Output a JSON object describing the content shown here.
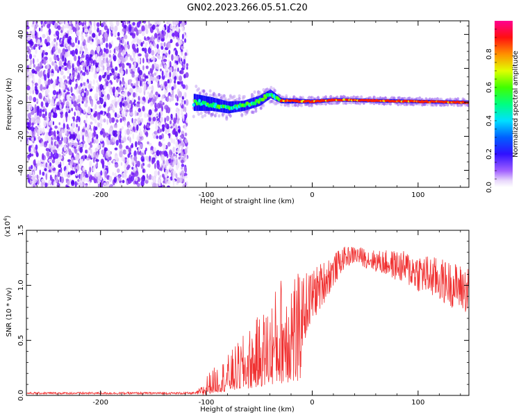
{
  "title": "GN02.2023.266.05.51.C20",
  "chart_data": [
    {
      "type": "heatmap",
      "name": "spectrogram",
      "xlabel": "Height of straight line (km)",
      "ylabel": "Frequency (Hz)",
      "xlim": [
        -270,
        148
      ],
      "ylim": [
        -50,
        48
      ],
      "xticks": [
        "-200",
        "-100",
        "0",
        "100"
      ],
      "xtick_values": [
        -200,
        -100,
        0,
        100
      ],
      "yticks": [
        "-40",
        "-20",
        "0",
        "20",
        "40"
      ],
      "ytick_values": [
        -40,
        -20,
        0,
        20,
        40
      ],
      "noise_region_x": [
        -270,
        -118
      ],
      "gap_region_x": [
        -118,
        -112
      ],
      "signal_band": [
        {
          "x": -112,
          "freq": 0,
          "spread": 5
        },
        {
          "x": -95,
          "freq": -1,
          "spread": 4
        },
        {
          "x": -80,
          "freq": -3,
          "spread": 3.5
        },
        {
          "x": -65,
          "freq": -2,
          "spread": 3
        },
        {
          "x": -50,
          "freq": 1,
          "spread": 3
        },
        {
          "x": -40,
          "freq": 5,
          "spread": 2.5
        },
        {
          "x": -30,
          "freq": 1,
          "spread": 1.5
        },
        {
          "x": 0,
          "freq": 0.5,
          "spread": 1.2
        },
        {
          "x": 20,
          "freq": 1.5,
          "spread": 1
        },
        {
          "x": 60,
          "freq": 1,
          "spread": 1
        },
        {
          "x": 100,
          "freq": 0.5,
          "spread": 1
        },
        {
          "x": 148,
          "freq": 0,
          "spread": 1
        }
      ],
      "colorbar": {
        "label": "Normalized spectral amplitude",
        "range": [
          0,
          1
        ],
        "ticks": [
          "0.0",
          "0.2",
          "0.4",
          "0.6",
          "0.8"
        ],
        "tick_values": [
          0,
          0.2,
          0.4,
          0.6,
          0.8
        ],
        "colors": [
          "#ffffff",
          "#d9b8f7",
          "#8000ff",
          "#0000ff",
          "#00ffff",
          "#00ff00",
          "#ffff00",
          "#ff8000",
          "#ff0000",
          "#ff0080"
        ]
      }
    },
    {
      "type": "line",
      "name": "snr",
      "xlabel": "Height of straight line (km)",
      "ylabel": "SNR (10 * v/v)",
      "y_multiplier": "(x10",
      "y_multiplier_exp": "4",
      "y_multiplier_close": ")",
      "xlim": [
        -270,
        148
      ],
      "ylim": [
        0,
        1.5
      ],
      "xticks": [
        "-200",
        "-100",
        "0",
        "100"
      ],
      "xtick_values": [
        -200,
        -100,
        0,
        100
      ],
      "yticks": [
        "0.0",
        "0.5",
        "1.0",
        "1.5"
      ],
      "ytick_values": [
        0,
        0.5,
        1.0,
        1.5
      ],
      "color": "#f03030",
      "envelope": [
        {
          "x": -270,
          "base": 0.02,
          "amp": 0.01
        },
        {
          "x": -110,
          "base": 0.02,
          "amp": 0.01
        },
        {
          "x": -100,
          "base": 0.05,
          "amp": 0.08
        },
        {
          "x": -80,
          "base": 0.12,
          "amp": 0.15
        },
        {
          "x": -60,
          "base": 0.2,
          "amp": 0.25
        },
        {
          "x": -40,
          "base": 0.32,
          "amp": 0.35
        },
        {
          "x": -20,
          "base": 0.4,
          "amp": 0.55
        },
        {
          "x": -12,
          "base": 0.3,
          "amp": 0.45
        },
        {
          "x": -10,
          "base": 0.75,
          "amp": 0.35
        },
        {
          "x": 0,
          "base": 0.9,
          "amp": 0.25
        },
        {
          "x": 15,
          "base": 1.08,
          "amp": 0.18
        },
        {
          "x": 30,
          "base": 1.25,
          "amp": 0.1
        },
        {
          "x": 40,
          "base": 1.28,
          "amp": 0.08
        },
        {
          "x": 60,
          "base": 1.22,
          "amp": 0.1
        },
        {
          "x": 80,
          "base": 1.18,
          "amp": 0.14
        },
        {
          "x": 100,
          "base": 1.12,
          "amp": 0.18
        },
        {
          "x": 120,
          "base": 1.05,
          "amp": 0.2
        },
        {
          "x": 148,
          "base": 0.95,
          "amp": 0.22
        }
      ]
    }
  ]
}
